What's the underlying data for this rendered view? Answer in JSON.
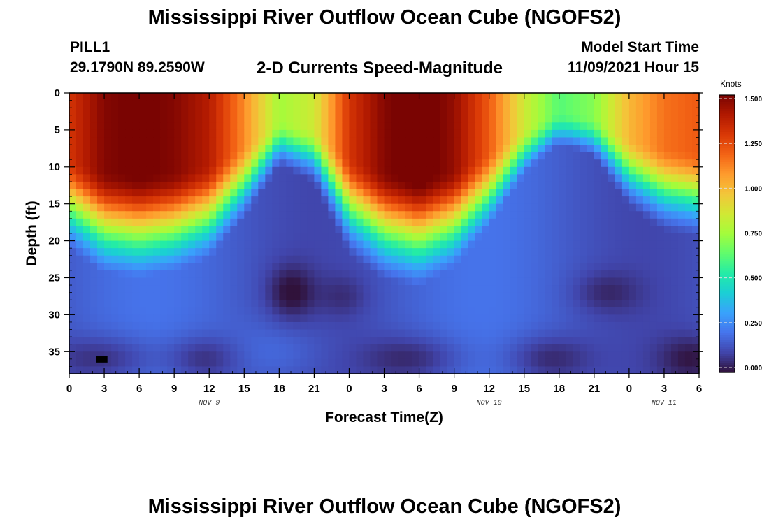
{
  "header": {
    "title": "Mississippi River Outflow Ocean Cube (NGOFS2)",
    "station": "PILL1",
    "coordinates": "29.1790N  89.2590W",
    "subtitle": "2-D Currents Speed-Magnitude",
    "start_label": "Model Start Time",
    "start_value": "11/09/2021 Hour 15"
  },
  "footer": {
    "title": "Mississippi River Outflow Ocean Cube (NGOFS2)"
  },
  "chart_data": {
    "type": "heatmap",
    "title": "2-D Currents Speed-Magnitude",
    "xlabel": "Forecast Time(Z)",
    "ylabel": "Depth (ft)",
    "x_tick_labels": [
      "0",
      "3",
      "6",
      "9",
      "12",
      "15",
      "18",
      "21",
      "0",
      "3",
      "6",
      "9",
      "12",
      "15",
      "18",
      "21",
      "0",
      "3",
      "6"
    ],
    "date_labels": [
      "NOV 9",
      "NOV 10",
      "NOV 11"
    ],
    "x_range_hours": [
      0,
      54
    ],
    "y_ticks": [
      0,
      5,
      10,
      15,
      20,
      25,
      30,
      35
    ],
    "ylim": [
      0,
      38
    ],
    "y_inverted": true,
    "colorbar": {
      "units": "Knots",
      "ticks": [
        "1.500",
        "1.250",
        "1.000",
        "0.750",
        "0.500",
        "0.250",
        "0.000"
      ],
      "range": [
        0,
        1.5
      ],
      "colors": [
        "#30123b",
        "#4145ab",
        "#4675ed",
        "#39a2fc",
        "#1bcfd4",
        "#24eca6",
        "#61fc6c",
        "#a4fc3b",
        "#d1e834",
        "#f3c63a",
        "#fe9b2d",
        "#f36315",
        "#d93806",
        "#b11901",
        "#7a0402"
      ]
    },
    "speed_notes": "Surface speed peaks ~1.5 kn near 06Z Nov 9 and 06Z Nov 10, minima ~0.7 kn near 18Z; near-bottom speeds 0.0-0.25 kn",
    "surface_profile_hours": [
      0,
      3,
      6,
      9,
      12,
      15,
      18,
      21,
      24,
      27,
      30,
      33,
      36,
      39,
      42,
      45,
      48,
      51,
      54
    ],
    "surface_speed_knots": [
      1.3,
      1.48,
      1.52,
      1.48,
      1.38,
      1.1,
      0.75,
      0.85,
      1.3,
      1.48,
      1.55,
      1.45,
      1.2,
      0.85,
      0.62,
      0.7,
      1.0,
      1.15,
      1.2
    ],
    "marker": {
      "hour": 2.8,
      "depth_ft": 36
    }
  }
}
